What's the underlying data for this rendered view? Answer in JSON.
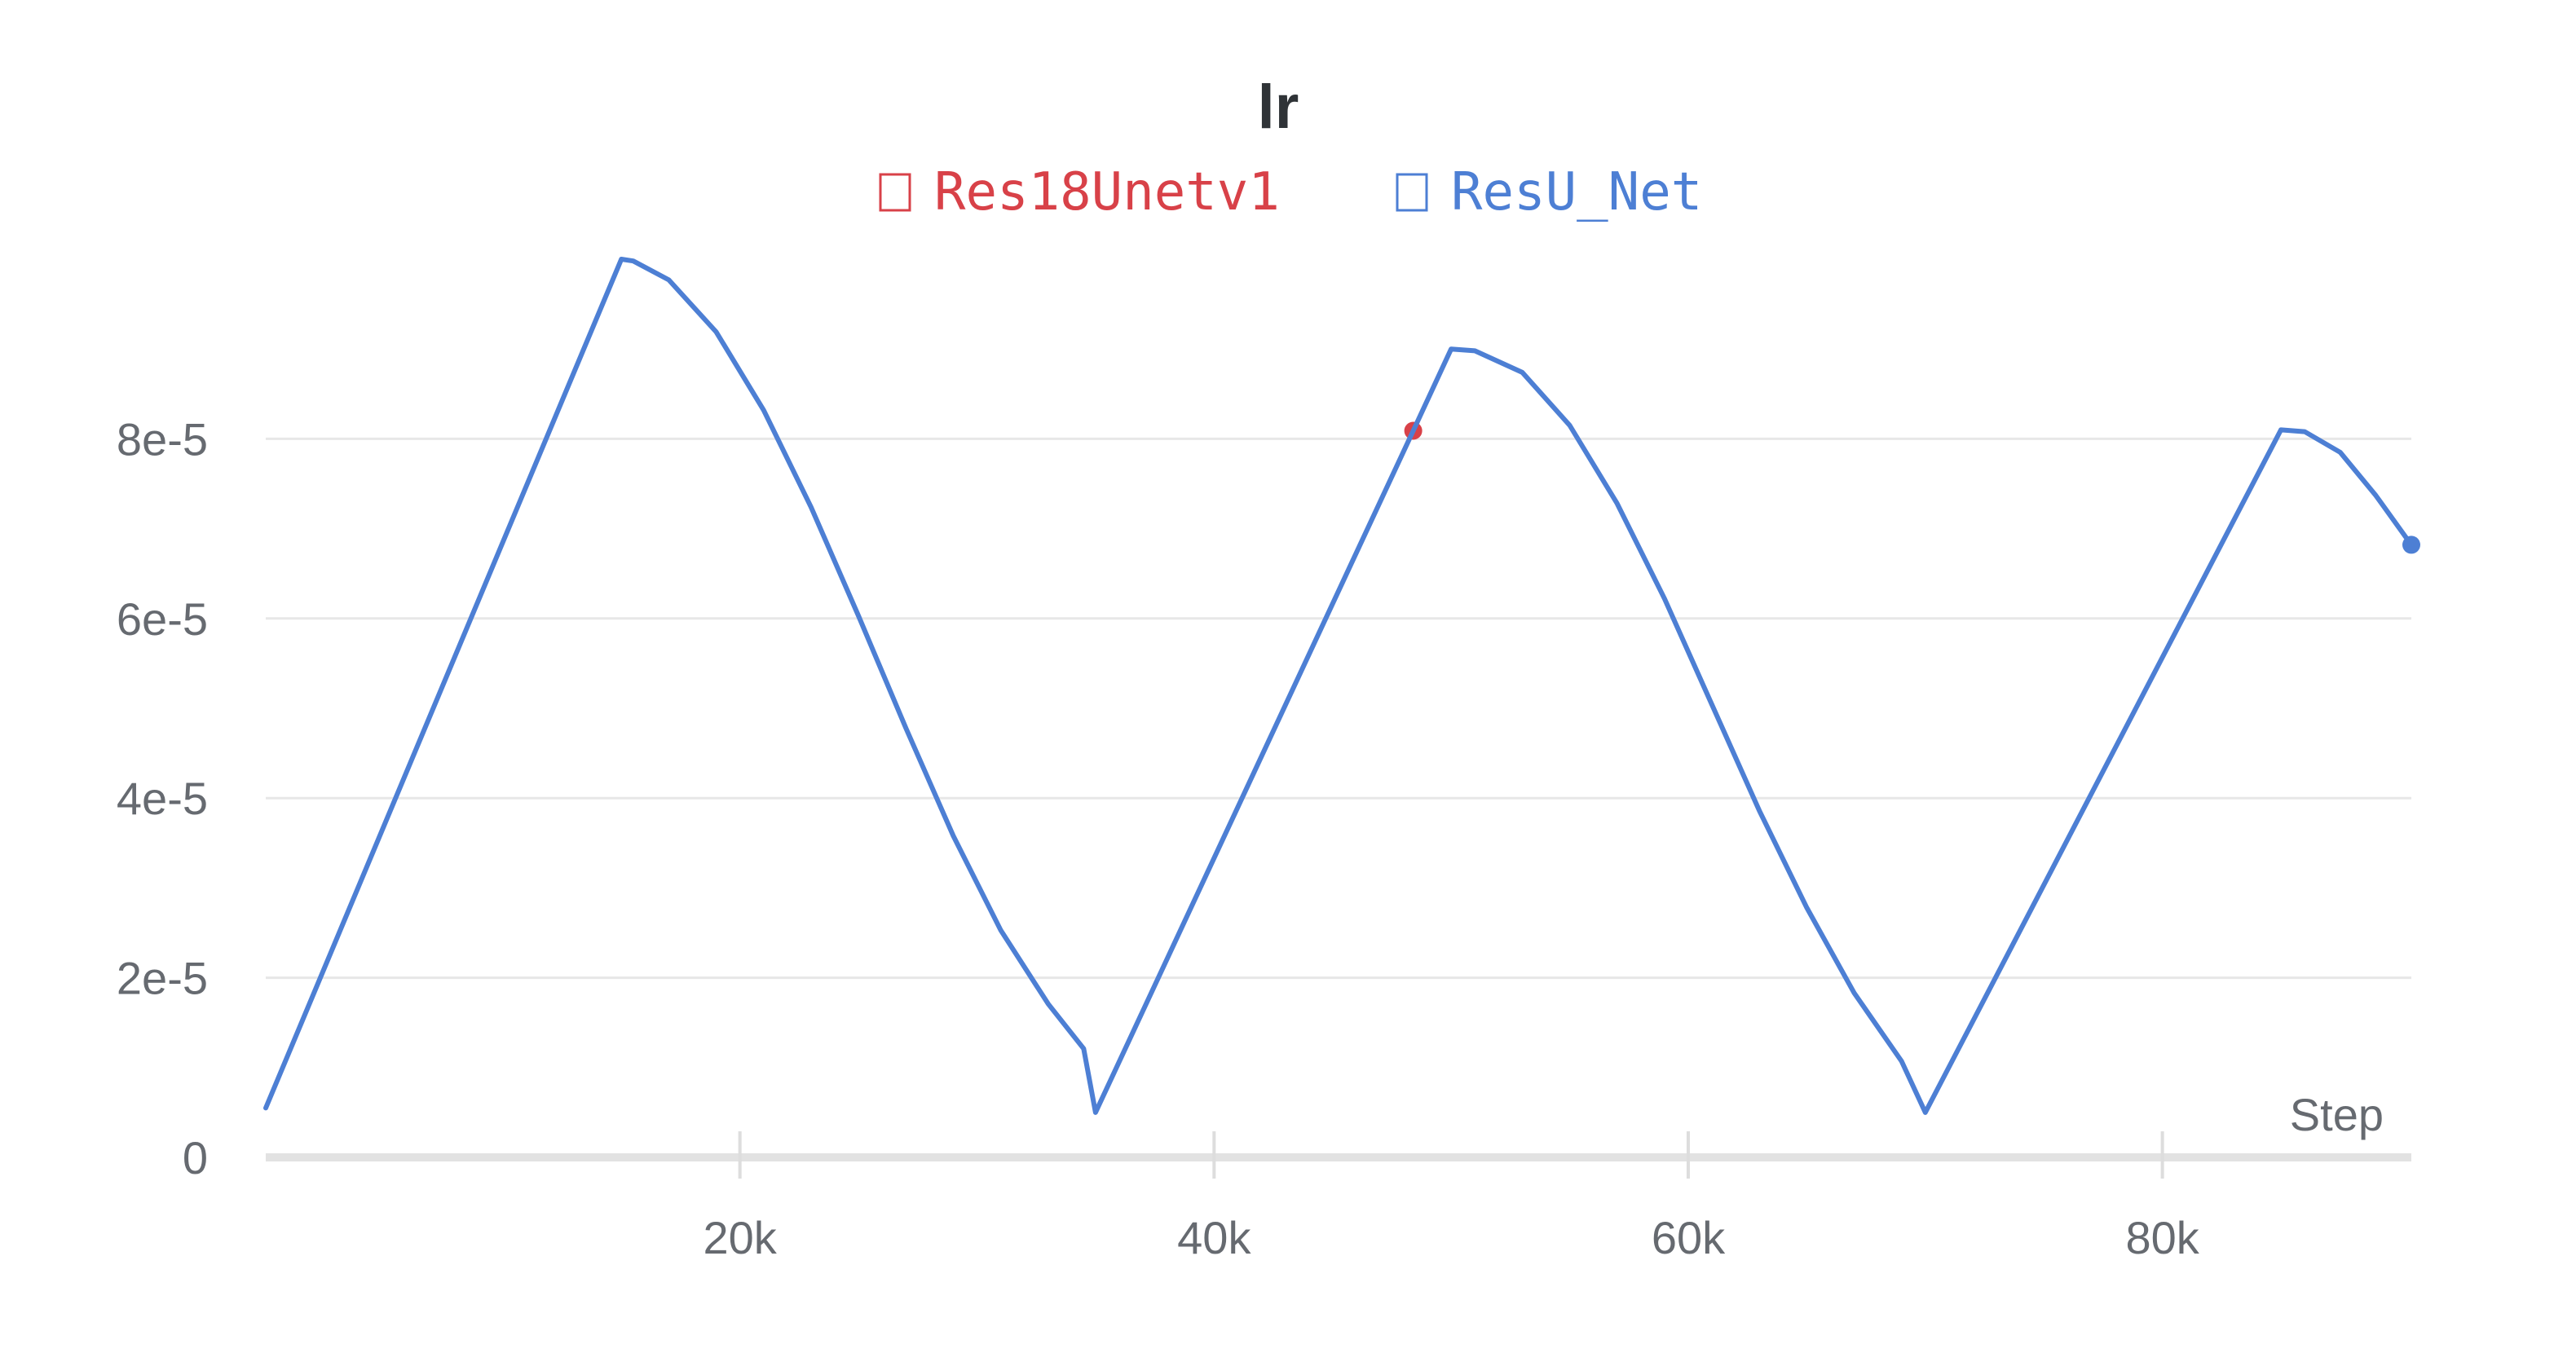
{
  "chart_data": {
    "type": "line",
    "title": "lr",
    "xlabel": "Step",
    "ylabel": "",
    "xlim": [
      0,
      90500
    ],
    "ylim": [
      0,
      0.0001
    ],
    "x_ticks": [
      20000,
      40000,
      60000,
      80000
    ],
    "x_tick_labels": [
      "20k",
      "40k",
      "60k",
      "80k"
    ],
    "y_ticks": [
      0,
      2e-05,
      4e-05,
      6e-05,
      8e-05
    ],
    "y_tick_labels": [
      "0",
      "2e-5",
      "4e-5",
      "6e-5",
      "8e-5"
    ],
    "grid": true,
    "legend_position": "top-center",
    "series": [
      {
        "name": "Res18Unetv1",
        "color": "#d84148",
        "marker_only": true,
        "points": [
          [
            48400,
            8.09e-05
          ]
        ]
      },
      {
        "name": "ResU_Net",
        "color": "#4d7fd4",
        "marker_only": false,
        "points": [
          [
            0,
            5.5e-06
          ],
          [
            15000,
            0.0001
          ],
          [
            15500,
            9.98e-05
          ],
          [
            17000,
            9.77e-05
          ],
          [
            19000,
            9.19e-05
          ],
          [
            21000,
            8.32e-05
          ],
          [
            23000,
            7.24e-05
          ],
          [
            25000,
            6.03e-05
          ],
          [
            27000,
            4.78e-05
          ],
          [
            29000,
            3.58e-05
          ],
          [
            31000,
            2.53e-05
          ],
          [
            33000,
            1.71e-05
          ],
          [
            34500,
            1.21e-05
          ],
          [
            35000,
            5e-06
          ],
          [
            48400,
            8.09e-05
          ],
          [
            50000,
            9e-05
          ],
          [
            51000,
            8.98e-05
          ],
          [
            53000,
            8.74e-05
          ],
          [
            55000,
            8.15e-05
          ],
          [
            57000,
            7.28e-05
          ],
          [
            59000,
            6.22e-05
          ],
          [
            61000,
            5.04e-05
          ],
          [
            63000,
            3.86e-05
          ],
          [
            65000,
            2.78e-05
          ],
          [
            67000,
            1.83e-05
          ],
          [
            69000,
            1.07e-05
          ],
          [
            70000,
            5e-06
          ],
          [
            85000,
            8.1e-05
          ],
          [
            86000,
            8.08e-05
          ],
          [
            87500,
            7.85e-05
          ],
          [
            89000,
            7.37e-05
          ],
          [
            90500,
            6.82e-05
          ]
        ]
      }
    ]
  }
}
